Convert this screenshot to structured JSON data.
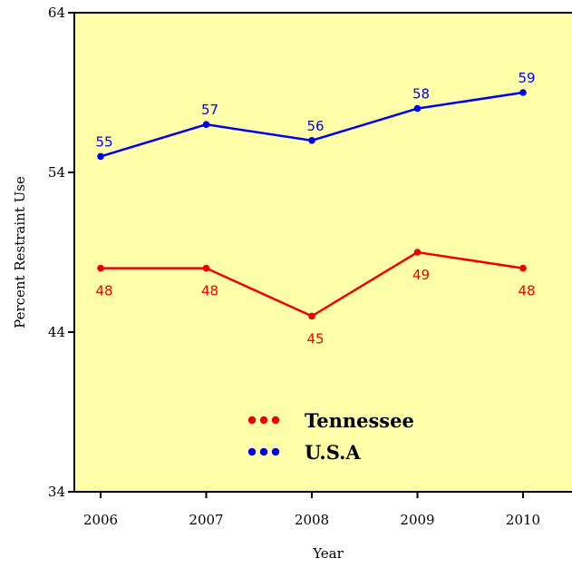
{
  "chart_data": {
    "type": "line",
    "title": "",
    "xlabel": "Year",
    "ylabel": "Percent Restraint Use",
    "x": [
      2006,
      2007,
      2008,
      2009,
      2010
    ],
    "ylim": [
      34,
      64
    ],
    "yticks": [
      34,
      44,
      54,
      64
    ],
    "grid": false,
    "legend": "center",
    "plot_background": "#FFFFAA",
    "series": [
      {
        "name": "Tennessee",
        "values": [
          48,
          48,
          45,
          49,
          48
        ],
        "color": "#EE0000",
        "label_position": "below"
      },
      {
        "name": "U.S.A",
        "values": [
          55,
          57,
          56,
          58,
          59
        ],
        "color": "#0000EE",
        "label_position": "above"
      }
    ]
  }
}
